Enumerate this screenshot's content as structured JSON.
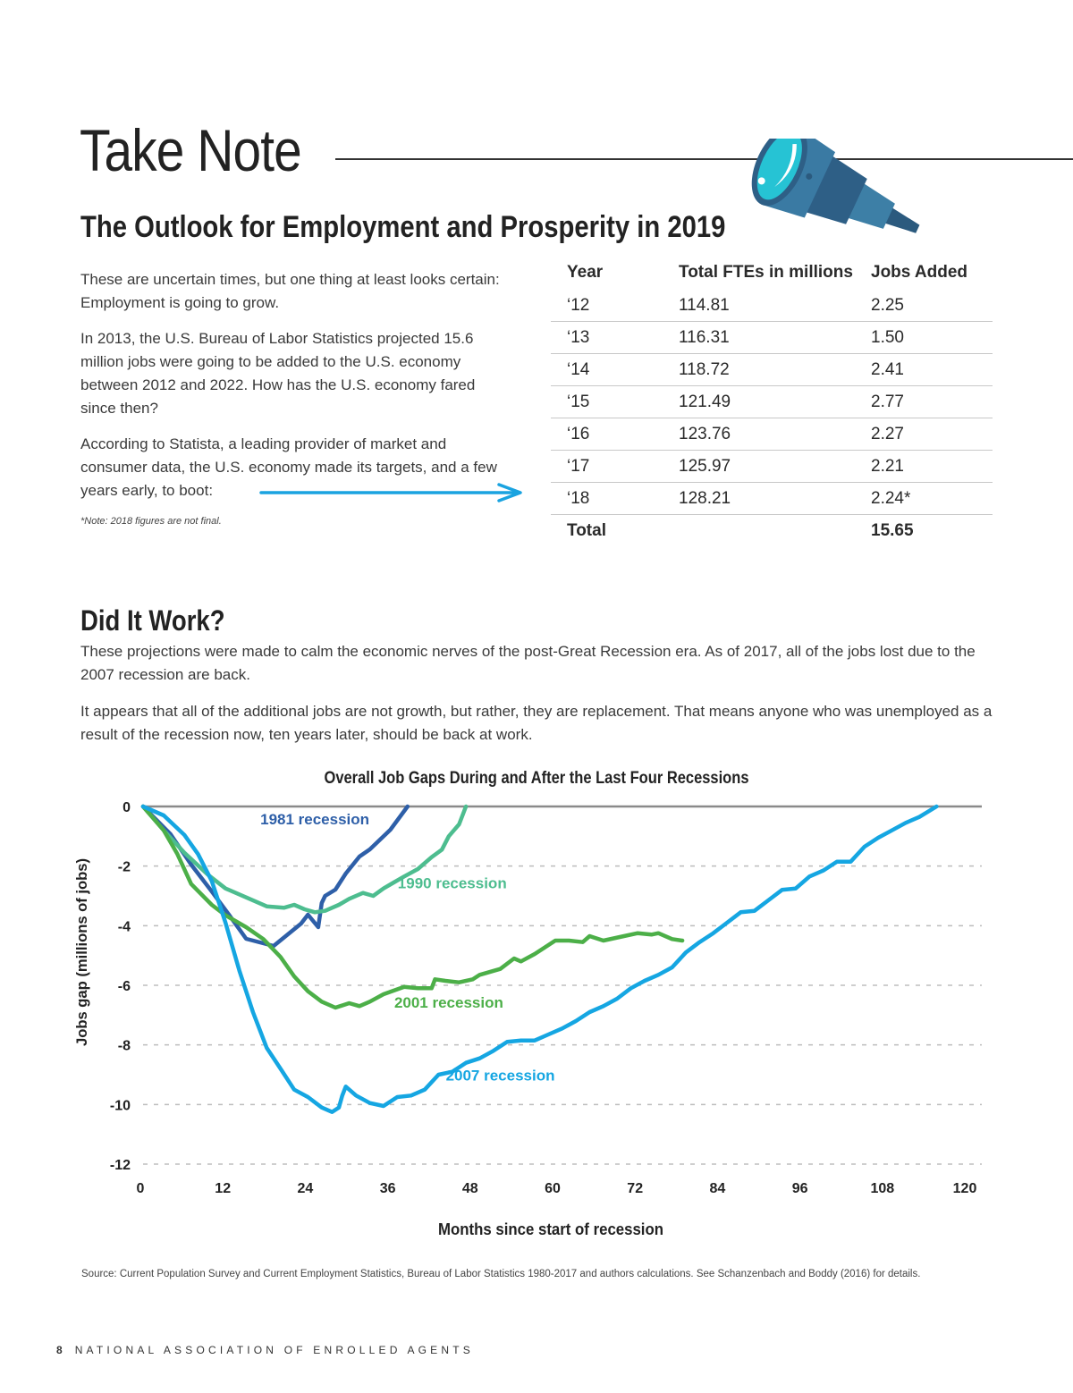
{
  "header": {
    "title": "Take Note",
    "subtitle": "The Outlook for Employment and Prosperity in 2019"
  },
  "icons": {
    "telescope": "telescope-icon",
    "arrow": "arrow-right-icon"
  },
  "intro": {
    "paragraphs": [
      "These are uncertain times,  but one thing at least looks certain: Employment is going to grow.",
      "In 2013, the U.S. Bureau of Labor Statistics projected 15.6 million jobs were going to be added to the U.S. economy between 2012 and 2022. How has the U.S. economy fared since then?",
      "According to Statista, a leading provider of market and consumer data, the U.S. economy made its targets, and a few years early, to boot:"
    ],
    "note": "*Note: 2018 figures are not final."
  },
  "table": {
    "headers": [
      "Year",
      "Total FTEs in millions",
      "Jobs Added"
    ],
    "rows": [
      [
        "‘12",
        "114.81",
        "2.25"
      ],
      [
        "‘13",
        "116.31",
        "1.50"
      ],
      [
        "‘14",
        "118.72",
        "2.41"
      ],
      [
        "‘15",
        "121.49",
        "2.77"
      ],
      [
        "‘16",
        "123.76",
        "2.27"
      ],
      [
        "‘17",
        "125.97",
        "2.21"
      ],
      [
        "‘18",
        "128.21",
        "2.24*"
      ]
    ],
    "total": [
      "Total",
      "",
      "15.65"
    ]
  },
  "section2": {
    "heading": "Did It Work?",
    "paragraphs": [
      "These projections were made to calm the economic nerves of the post-Great Recession era. As of 2017, all of the jobs lost due to the 2007 recession are back.",
      "It appears that all of the additional jobs are not growth, but rather, they are replacement. That means anyone who was unemployed as a result of the recession now, ten years later, should be back at work."
    ]
  },
  "colors": {
    "accent_arrow": "#1aa3e0",
    "r1981": "#2e5fa8",
    "r1990": "#4dbd8f",
    "r2001": "#4caf48",
    "r2007": "#15a6e2",
    "zero_line": "#8a8a8a",
    "grid": "#bdbdbd"
  },
  "chart_data": {
    "type": "line",
    "title": "Overall Job Gaps During and After the Last Four Recessions",
    "xlabel": "Months since start of recession",
    "ylabel": "Jobs gap (millions of jobs)",
    "xlim": [
      0,
      120
    ],
    "ylim": [
      -12,
      0
    ],
    "xticks": [
      0,
      12,
      24,
      36,
      48,
      60,
      72,
      84,
      96,
      108,
      120
    ],
    "yticks": [
      0,
      -2,
      -4,
      -6,
      -8,
      -10,
      -12
    ],
    "ytick_labels": [
      "0",
      "-2",
      "-4",
      "-6",
      "-8",
      "-10",
      "-12"
    ],
    "grid": "horizontal dashed",
    "legend": "inline labels",
    "series": [
      {
        "name": "1981 recession",
        "color": "#2e5fa8",
        "x": [
          0,
          4,
          7,
          10,
          12.5,
          15,
          19,
          23,
          24,
          25.5,
          26,
          26.5,
          28,
          29.5,
          31.5,
          33,
          36,
          38.5
        ],
        "y": [
          0,
          -0.93,
          -1.95,
          -2.85,
          -3.63,
          -4.44,
          -4.68,
          -3.93,
          -3.63,
          -4.05,
          -3.24,
          -3.0,
          -2.79,
          -2.25,
          -1.68,
          -1.44,
          -0.78,
          0
        ]
      },
      {
        "name": "1990 recession",
        "color": "#4dbd8f",
        "x": [
          0,
          3,
          6,
          9.5,
          12,
          15,
          18,
          20.5,
          22,
          23.5,
          25,
          26.5,
          28.5,
          30,
          32,
          33.5,
          35,
          36.5,
          38,
          40,
          42,
          43.5,
          44.5,
          46,
          47
        ],
        "y": [
          0,
          -0.8,
          -1.55,
          -2.3,
          -2.75,
          -3.05,
          -3.35,
          -3.4,
          -3.3,
          -3.45,
          -3.55,
          -3.5,
          -3.3,
          -3.1,
          -2.9,
          -3.0,
          -2.75,
          -2.55,
          -2.35,
          -2.1,
          -1.7,
          -1.45,
          -1.0,
          -0.6,
          0
        ]
      },
      {
        "name": "2001 recession",
        "color": "#4caf48",
        "x": [
          0,
          3,
          5,
          7,
          10,
          12,
          15,
          17.5,
          20,
          22,
          24,
          26,
          28,
          30,
          31.5,
          33,
          35,
          38,
          40,
          42,
          42.5,
          44,
          46,
          48,
          49,
          52,
          54,
          55,
          57,
          60,
          62,
          64,
          65,
          67,
          70,
          72,
          74,
          75,
          77,
          78.5
        ],
        "y": [
          0,
          -0.8,
          -1.6,
          -2.6,
          -3.3,
          -3.65,
          -4.05,
          -4.45,
          -5.05,
          -5.7,
          -6.2,
          -6.55,
          -6.75,
          -6.6,
          -6.7,
          -6.55,
          -6.3,
          -6.05,
          -6.1,
          -6.1,
          -5.8,
          -5.85,
          -5.9,
          -5.8,
          -5.65,
          -5.45,
          -5.1,
          -5.2,
          -4.95,
          -4.5,
          -4.5,
          -4.55,
          -4.35,
          -4.5,
          -4.35,
          -4.25,
          -4.3,
          -4.25,
          -4.45,
          -4.5
        ]
      },
      {
        "name": "2007 recession",
        "color": "#15a6e2",
        "x": [
          0,
          3,
          6,
          8,
          10,
          12,
          14,
          16,
          18,
          20,
          22,
          24,
          26,
          27.5,
          28.5,
          29,
          29.5,
          31,
          33,
          35,
          37,
          39,
          41,
          43,
          45,
          47,
          49,
          51,
          53,
          55,
          57,
          59,
          61,
          63,
          65,
          67,
          69,
          71,
          73,
          75,
          77,
          79,
          81,
          83,
          85,
          87,
          89,
          91,
          93,
          95,
          97,
          99,
          101,
          103,
          105,
          107,
          109,
          111,
          113,
          115.5
        ],
        "y": [
          0,
          -0.3,
          -0.95,
          -1.6,
          -2.5,
          -3.9,
          -5.5,
          -6.9,
          -8.1,
          -8.8,
          -9.5,
          -9.75,
          -10.1,
          -10.25,
          -10.1,
          -9.7,
          -9.4,
          -9.7,
          -9.95,
          -10.05,
          -9.75,
          -9.7,
          -9.5,
          -9.0,
          -8.9,
          -8.6,
          -8.45,
          -8.2,
          -7.9,
          -7.85,
          -7.85,
          -7.65,
          -7.45,
          -7.2,
          -6.9,
          -6.7,
          -6.45,
          -6.1,
          -5.85,
          -5.65,
          -5.4,
          -4.9,
          -4.55,
          -4.25,
          -3.9,
          -3.55,
          -3.5,
          -3.15,
          -2.8,
          -2.75,
          -2.35,
          -2.15,
          -1.85,
          -1.85,
          -1.35,
          -1.05,
          -0.8,
          -0.55,
          -0.35,
          0
        ]
      }
    ],
    "annotations": [
      {
        "text": "1981 recession",
        "x": 25,
        "y": -0.6,
        "color": "#2e5fa8"
      },
      {
        "text": "1990 recession",
        "x": 45,
        "y": -2.75,
        "color": "#4dbd8f"
      },
      {
        "text": "2001 recession",
        "x": 44.5,
        "y": -6.75,
        "color": "#4caf48"
      },
      {
        "text": "2007 recession",
        "x": 52,
        "y": -9.2,
        "color": "#15a6e2"
      }
    ]
  },
  "source": "Source: Current Population Survey and Current Employment Statistics, Bureau of Labor Statistics 1980-2017 and authors calculations. See Schanzenbach and Boddy (2016) for details.",
  "footer": {
    "page_number": "8",
    "org": "NATIONAL ASSOCIATION OF ENROLLED AGENTS"
  }
}
